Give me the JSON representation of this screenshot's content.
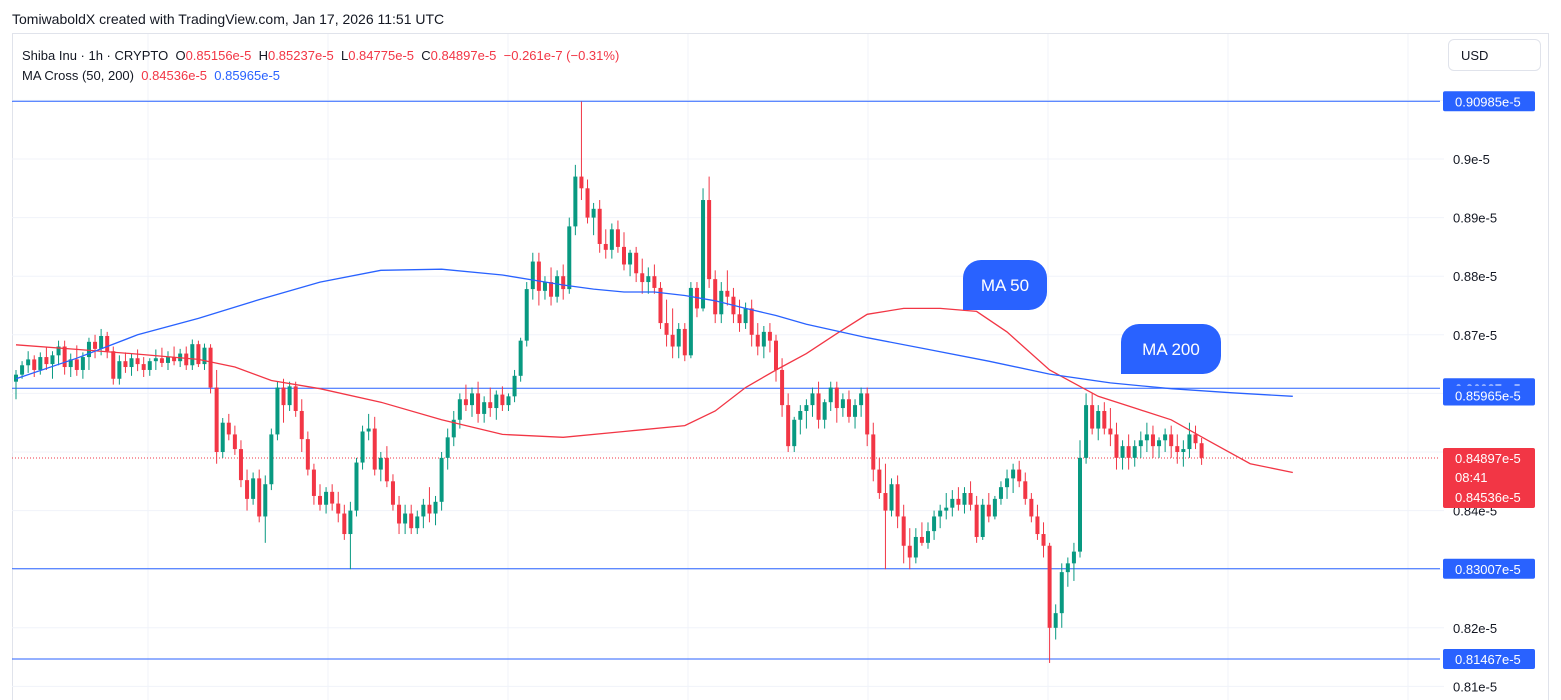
{
  "attribution": "TomiwaboldX created with TradingView.com, Jan 17, 2026 11:51 UTC",
  "legend": {
    "symbol": "Shiba Inu · 1h · CRYPTO",
    "o_label": "O",
    "o_value": "0.85156e-5",
    "h_label": "H",
    "h_value": "0.85237e-5",
    "l_label": "L",
    "l_value": "0.84775e-5",
    "c_label": "C",
    "c_value": "0.84897e-5",
    "change": "−0.261e-7 (−0.31%)",
    "ma_label": "MA Cross (50, 200)",
    "ma50_value": "0.84536e-5",
    "ma200_value": "0.85965e-5"
  },
  "currency": "USD",
  "chart_data": {
    "type": "candlestick",
    "y_unit": "e-5",
    "ylim": [
      0.8085,
      0.9125
    ],
    "y_ticks": [
      {
        "value": 0.9,
        "label": "0.9e-5"
      },
      {
        "value": 0.89,
        "label": "0.89e-5"
      },
      {
        "value": 0.88,
        "label": "0.88e-5"
      },
      {
        "value": 0.87,
        "label": "0.87e-5"
      },
      {
        "value": 0.84,
        "label": "0.84e-5"
      },
      {
        "value": 0.82,
        "label": "0.82e-5"
      },
      {
        "value": 0.81,
        "label": "0.81e-5"
      }
    ],
    "horizontal_levels": [
      {
        "value": 0.90985,
        "label": "0.90985e-5"
      },
      {
        "value": 0.86087,
        "label": "0.86087e-5"
      },
      {
        "value": 0.83007,
        "label": "0.83007e-5"
      },
      {
        "value": 0.81467,
        "label": "0.81467e-5"
      }
    ],
    "price_tags": [
      {
        "value": 0.85965,
        "label": "0.85965e-5",
        "color": "#2962ff"
      },
      {
        "value": 0.84897,
        "label": "0.84897e-5",
        "color": "#f23645"
      },
      {
        "value": 0.84536,
        "label": "0.84536e-5",
        "color": "#f23645"
      }
    ],
    "countdown": "08:41",
    "last_price": 0.84897,
    "callouts": [
      {
        "label": "MA 50",
        "color": "#2962ff"
      },
      {
        "label": "MA 200",
        "color": "#2962ff"
      }
    ],
    "series": [
      {
        "name": "MA 50",
        "color": "#f23645",
        "x": [
          0,
          10,
          20,
          30,
          36,
          42,
          50,
          60,
          70,
          80,
          90,
          100,
          110,
          115,
          120,
          125,
          130,
          135,
          140,
          146,
          152,
          158,
          163,
          170,
          178,
          184,
          190,
          196,
          203,
          210
        ],
        "values": [
          0.8683,
          0.8675,
          0.8667,
          0.8658,
          0.8645,
          0.8622,
          0.8608,
          0.8585,
          0.8555,
          0.853,
          0.8525,
          0.8535,
          0.8545,
          0.857,
          0.861,
          0.864,
          0.8668,
          0.8702,
          0.8735,
          0.8745,
          0.8745,
          0.874,
          0.8705,
          0.864,
          0.8595,
          0.8575,
          0.8555,
          0.852,
          0.848,
          0.8465
        ]
      },
      {
        "name": "MA 200",
        "color": "#2962ff",
        "x": [
          0,
          10,
          20,
          30,
          40,
          50,
          60,
          70,
          80,
          90,
          95,
          100,
          105,
          110,
          115,
          120,
          125,
          130,
          140,
          150,
          160,
          170,
          180,
          190,
          200,
          210
        ],
        "values": [
          0.8625,
          0.866,
          0.87,
          0.8728,
          0.876,
          0.879,
          0.881,
          0.8812,
          0.8802,
          0.8785,
          0.8778,
          0.8773,
          0.8773,
          0.8767,
          0.8758,
          0.8745,
          0.8733,
          0.8718,
          0.8695,
          0.8675,
          0.8655,
          0.8633,
          0.8618,
          0.8608,
          0.8601,
          0.8595
        ]
      }
    ],
    "candles": [
      [
        0.862,
        0.864,
        0.859,
        0.8632
      ],
      [
        0.8632,
        0.8655,
        0.8625,
        0.8648
      ],
      [
        0.8648,
        0.8672,
        0.8635,
        0.8658
      ],
      [
        0.8658,
        0.8665,
        0.8628,
        0.864
      ],
      [
        0.864,
        0.867,
        0.8632,
        0.8662
      ],
      [
        0.8662,
        0.868,
        0.864,
        0.865
      ],
      [
        0.865,
        0.8672,
        0.8625,
        0.8665
      ],
      [
        0.8665,
        0.869,
        0.8648,
        0.868
      ],
      [
        0.868,
        0.869,
        0.8632,
        0.8645
      ],
      [
        0.8645,
        0.8668,
        0.8628,
        0.8658
      ],
      [
        0.8658,
        0.8682,
        0.863,
        0.864
      ],
      [
        0.864,
        0.867,
        0.8625,
        0.8662
      ],
      [
        0.8662,
        0.8695,
        0.864,
        0.8688
      ],
      [
        0.8688,
        0.87,
        0.866,
        0.8676
      ],
      [
        0.8676,
        0.871,
        0.8665,
        0.8698
      ],
      [
        0.8698,
        0.8705,
        0.866,
        0.8672
      ],
      [
        0.8672,
        0.868,
        0.8615,
        0.8625
      ],
      [
        0.8625,
        0.8665,
        0.8615,
        0.8655
      ],
      [
        0.8655,
        0.867,
        0.8635,
        0.8645
      ],
      [
        0.8645,
        0.8668,
        0.863,
        0.866
      ],
      [
        0.866,
        0.8675,
        0.8638,
        0.865
      ],
      [
        0.865,
        0.8662,
        0.8628,
        0.864
      ],
      [
        0.864,
        0.866,
        0.863,
        0.8655
      ],
      [
        0.8655,
        0.8675,
        0.864,
        0.866
      ],
      [
        0.866,
        0.8678,
        0.8645,
        0.8652
      ],
      [
        0.8652,
        0.8672,
        0.864,
        0.8662
      ],
      [
        0.8662,
        0.868,
        0.8648,
        0.8655
      ],
      [
        0.8655,
        0.8676,
        0.8645,
        0.8668
      ],
      [
        0.8668,
        0.868,
        0.864,
        0.8648
      ],
      [
        0.8648,
        0.8692,
        0.864,
        0.8684
      ],
      [
        0.8684,
        0.869,
        0.8645,
        0.865
      ],
      [
        0.865,
        0.8685,
        0.864,
        0.8678
      ],
      [
        0.8678,
        0.8684,
        0.86,
        0.861
      ],
      [
        0.861,
        0.864,
        0.848,
        0.85
      ],
      [
        0.85,
        0.8558,
        0.849,
        0.855
      ],
      [
        0.855,
        0.8565,
        0.852,
        0.853
      ],
      [
        0.853,
        0.8545,
        0.8495,
        0.8505
      ],
      [
        0.8505,
        0.852,
        0.844,
        0.8452
      ],
      [
        0.8452,
        0.847,
        0.84,
        0.842
      ],
      [
        0.842,
        0.8465,
        0.841,
        0.8455
      ],
      [
        0.8455,
        0.847,
        0.838,
        0.839
      ],
      [
        0.839,
        0.846,
        0.8345,
        0.8445
      ],
      [
        0.8445,
        0.854,
        0.8435,
        0.853
      ],
      [
        0.853,
        0.862,
        0.852,
        0.861
      ],
      [
        0.861,
        0.8625,
        0.855,
        0.858
      ],
      [
        0.858,
        0.862,
        0.857,
        0.8612
      ],
      [
        0.8612,
        0.862,
        0.856,
        0.857
      ],
      [
        0.857,
        0.859,
        0.85,
        0.8522
      ],
      [
        0.8522,
        0.8535,
        0.846,
        0.847
      ],
      [
        0.847,
        0.848,
        0.841,
        0.8425
      ],
      [
        0.8425,
        0.8445,
        0.84,
        0.841
      ],
      [
        0.841,
        0.844,
        0.8395,
        0.8432
      ],
      [
        0.8432,
        0.8445,
        0.84,
        0.8412
      ],
      [
        0.8412,
        0.8432,
        0.838,
        0.8395
      ],
      [
        0.8395,
        0.841,
        0.835,
        0.836
      ],
      [
        0.836,
        0.8415,
        0.83,
        0.84
      ],
      [
        0.84,
        0.849,
        0.839,
        0.8482
      ],
      [
        0.8482,
        0.8545,
        0.847,
        0.8535
      ],
      [
        0.8535,
        0.8565,
        0.852,
        0.854
      ],
      [
        0.854,
        0.856,
        0.846,
        0.847
      ],
      [
        0.847,
        0.85,
        0.845,
        0.849
      ],
      [
        0.849,
        0.851,
        0.844,
        0.845
      ],
      [
        0.845,
        0.8462,
        0.84,
        0.841
      ],
      [
        0.841,
        0.8425,
        0.836,
        0.8378
      ],
      [
        0.8378,
        0.841,
        0.836,
        0.8395
      ],
      [
        0.8395,
        0.841,
        0.836,
        0.837
      ],
      [
        0.837,
        0.84,
        0.836,
        0.839
      ],
      [
        0.839,
        0.842,
        0.837,
        0.841
      ],
      [
        0.841,
        0.844,
        0.838,
        0.8395
      ],
      [
        0.8395,
        0.8425,
        0.8375,
        0.8415
      ],
      [
        0.8415,
        0.85,
        0.84,
        0.849
      ],
      [
        0.849,
        0.854,
        0.847,
        0.8525
      ],
      [
        0.8525,
        0.857,
        0.851,
        0.8555
      ],
      [
        0.8555,
        0.86,
        0.854,
        0.859
      ],
      [
        0.859,
        0.8615,
        0.857,
        0.858
      ],
      [
        0.858,
        0.861,
        0.856,
        0.86
      ],
      [
        0.86,
        0.862,
        0.855,
        0.8565
      ],
      [
        0.8565,
        0.8595,
        0.855,
        0.8585
      ],
      [
        0.8585,
        0.861,
        0.856,
        0.8575
      ],
      [
        0.8575,
        0.8605,
        0.8555,
        0.8598
      ],
      [
        0.8598,
        0.8612,
        0.857,
        0.858
      ],
      [
        0.858,
        0.86,
        0.857,
        0.8595
      ],
      [
        0.8595,
        0.864,
        0.8585,
        0.863
      ],
      [
        0.863,
        0.8695,
        0.862,
        0.869
      ],
      [
        0.869,
        0.879,
        0.868,
        0.8778
      ],
      [
        0.8778,
        0.884,
        0.876,
        0.8825
      ],
      [
        0.8825,
        0.884,
        0.875,
        0.8775
      ],
      [
        0.8775,
        0.88,
        0.876,
        0.879
      ],
      [
        0.879,
        0.8815,
        0.875,
        0.8765
      ],
      [
        0.8765,
        0.881,
        0.8755,
        0.88
      ],
      [
        0.88,
        0.882,
        0.876,
        0.8778
      ],
      [
        0.8778,
        0.89,
        0.877,
        0.8885
      ],
      [
        0.8885,
        0.899,
        0.887,
        0.897
      ],
      [
        0.897,
        0.9098,
        0.893,
        0.895
      ],
      [
        0.895,
        0.8965,
        0.889,
        0.89
      ],
      [
        0.89,
        0.8925,
        0.887,
        0.8915
      ],
      [
        0.8915,
        0.893,
        0.884,
        0.8855
      ],
      [
        0.8855,
        0.888,
        0.883,
        0.8845
      ],
      [
        0.8845,
        0.889,
        0.883,
        0.888
      ],
      [
        0.888,
        0.8895,
        0.884,
        0.885
      ],
      [
        0.885,
        0.8875,
        0.881,
        0.882
      ],
      [
        0.882,
        0.8845,
        0.88,
        0.884
      ],
      [
        0.884,
        0.885,
        0.879,
        0.8805
      ],
      [
        0.8805,
        0.883,
        0.877,
        0.879
      ],
      [
        0.879,
        0.8815,
        0.877,
        0.88
      ],
      [
        0.88,
        0.882,
        0.877,
        0.878
      ],
      [
        0.878,
        0.879,
        0.871,
        0.872
      ],
      [
        0.872,
        0.876,
        0.868,
        0.87
      ],
      [
        0.87,
        0.8745,
        0.866,
        0.868
      ],
      [
        0.868,
        0.872,
        0.866,
        0.871
      ],
      [
        0.871,
        0.872,
        0.8655,
        0.8665
      ],
      [
        0.8665,
        0.879,
        0.866,
        0.878
      ],
      [
        0.878,
        0.879,
        0.873,
        0.8745
      ],
      [
        0.8745,
        0.895,
        0.874,
        0.893
      ],
      [
        0.893,
        0.897,
        0.878,
        0.8795
      ],
      [
        0.8795,
        0.881,
        0.872,
        0.8735
      ],
      [
        0.8735,
        0.879,
        0.872,
        0.8775
      ],
      [
        0.8775,
        0.881,
        0.875,
        0.8765
      ],
      [
        0.8765,
        0.878,
        0.872,
        0.8735
      ],
      [
        0.8735,
        0.876,
        0.8705,
        0.872
      ],
      [
        0.872,
        0.8755,
        0.871,
        0.8745
      ],
      [
        0.8745,
        0.876,
        0.868,
        0.87
      ],
      [
        0.87,
        0.872,
        0.8665,
        0.868
      ],
      [
        0.868,
        0.8715,
        0.866,
        0.8705
      ],
      [
        0.8705,
        0.872,
        0.867,
        0.869
      ],
      [
        0.869,
        0.87,
        0.862,
        0.864
      ],
      [
        0.864,
        0.866,
        0.856,
        0.858
      ],
      [
        0.858,
        0.86,
        0.85,
        0.851
      ],
      [
        0.851,
        0.856,
        0.85,
        0.8555
      ],
      [
        0.8555,
        0.858,
        0.853,
        0.857
      ],
      [
        0.857,
        0.859,
        0.854,
        0.858
      ],
      [
        0.858,
        0.861,
        0.856,
        0.86
      ],
      [
        0.86,
        0.862,
        0.854,
        0.8555
      ],
      [
        0.8555,
        0.859,
        0.854,
        0.8585
      ],
      [
        0.8585,
        0.862,
        0.857,
        0.861
      ],
      [
        0.861,
        0.862,
        0.855,
        0.8575
      ],
      [
        0.8575,
        0.86,
        0.856,
        0.859
      ],
      [
        0.859,
        0.8605,
        0.855,
        0.856
      ],
      [
        0.856,
        0.859,
        0.854,
        0.858
      ],
      [
        0.858,
        0.861,
        0.856,
        0.86
      ],
      [
        0.86,
        0.861,
        0.851,
        0.853
      ],
      [
        0.853,
        0.855,
        0.845,
        0.847
      ],
      [
        0.847,
        0.849,
        0.842,
        0.843
      ],
      [
        0.843,
        0.848,
        0.83,
        0.84
      ],
      [
        0.84,
        0.8455,
        0.839,
        0.8445
      ],
      [
        0.8445,
        0.846,
        0.837,
        0.839
      ],
      [
        0.839,
        0.841,
        0.831,
        0.834
      ],
      [
        0.834,
        0.837,
        0.83,
        0.832
      ],
      [
        0.832,
        0.837,
        0.831,
        0.8355
      ],
      [
        0.8355,
        0.838,
        0.834,
        0.8345
      ],
      [
        0.8345,
        0.838,
        0.8335,
        0.8365
      ],
      [
        0.8365,
        0.84,
        0.835,
        0.839
      ],
      [
        0.839,
        0.841,
        0.837,
        0.84
      ],
      [
        0.84,
        0.843,
        0.8385,
        0.8405
      ],
      [
        0.8405,
        0.8435,
        0.839,
        0.842
      ],
      [
        0.842,
        0.844,
        0.84,
        0.841
      ],
      [
        0.841,
        0.844,
        0.8395,
        0.843
      ],
      [
        0.843,
        0.845,
        0.84,
        0.841
      ],
      [
        0.841,
        0.8425,
        0.8345,
        0.8355
      ],
      [
        0.8355,
        0.842,
        0.835,
        0.841
      ],
      [
        0.841,
        0.843,
        0.838,
        0.839
      ],
      [
        0.839,
        0.8425,
        0.8385,
        0.842
      ],
      [
        0.842,
        0.845,
        0.841,
        0.844
      ],
      [
        0.844,
        0.847,
        0.842,
        0.8455
      ],
      [
        0.8455,
        0.848,
        0.843,
        0.847
      ],
      [
        0.847,
        0.8485,
        0.844,
        0.845
      ],
      [
        0.845,
        0.8465,
        0.841,
        0.842
      ],
      [
        0.842,
        0.843,
        0.838,
        0.839
      ],
      [
        0.839,
        0.841,
        0.835,
        0.836
      ],
      [
        0.836,
        0.838,
        0.832,
        0.834
      ],
      [
        0.834,
        0.8345,
        0.814,
        0.82
      ],
      [
        0.82,
        0.824,
        0.818,
        0.8225
      ],
      [
        0.8225,
        0.831,
        0.82,
        0.8295
      ],
      [
        0.8295,
        0.832,
        0.827,
        0.831
      ],
      [
        0.831,
        0.8345,
        0.828,
        0.833
      ],
      [
        0.833,
        0.852,
        0.832,
        0.849
      ],
      [
        0.849,
        0.86,
        0.848,
        0.858
      ],
      [
        0.858,
        0.86,
        0.853,
        0.854
      ],
      [
        0.854,
        0.858,
        0.852,
        0.857
      ],
      [
        0.857,
        0.8585,
        0.853,
        0.854
      ],
      [
        0.854,
        0.8575,
        0.851,
        0.853
      ],
      [
        0.853,
        0.855,
        0.847,
        0.849
      ],
      [
        0.849,
        0.852,
        0.847,
        0.851
      ],
      [
        0.851,
        0.853,
        0.847,
        0.849
      ],
      [
        0.849,
        0.852,
        0.8475,
        0.851
      ],
      [
        0.851,
        0.8535,
        0.849,
        0.852
      ],
      [
        0.852,
        0.855,
        0.85,
        0.853
      ],
      [
        0.853,
        0.8545,
        0.849,
        0.851
      ],
      [
        0.851,
        0.8525,
        0.849,
        0.852
      ],
      [
        0.852,
        0.854,
        0.85,
        0.853
      ],
      [
        0.853,
        0.8545,
        0.849,
        0.851
      ],
      [
        0.851,
        0.853,
        0.848,
        0.85
      ],
      [
        0.85,
        0.852,
        0.8475,
        0.8505
      ],
      [
        0.8505,
        0.855,
        0.849,
        0.853
      ],
      [
        0.853,
        0.8545,
        0.8505,
        0.8515
      ],
      [
        0.8515,
        0.8524,
        0.8478,
        0.849
      ]
    ]
  }
}
